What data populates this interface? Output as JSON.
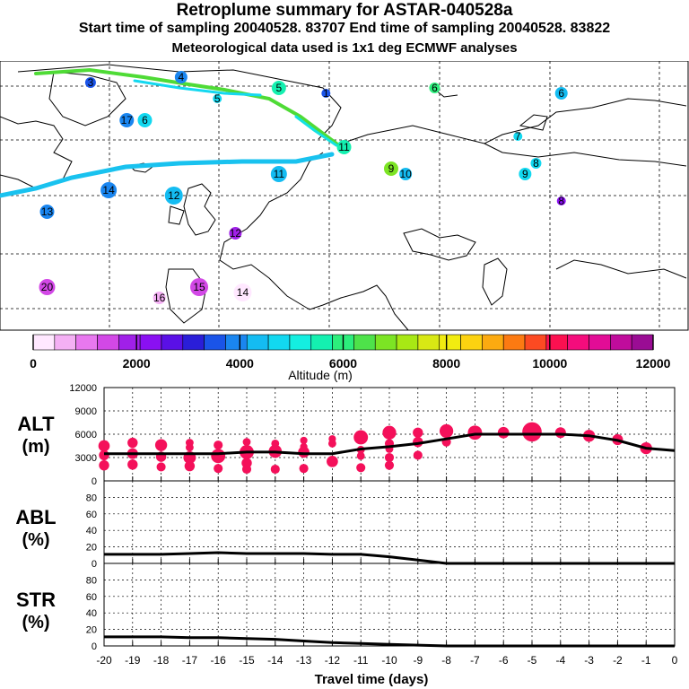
{
  "header": {
    "title": "Retroplume summary for ASTAR-040528a",
    "subtitle_sampling": "Start time of sampling 20040528. 83707     End time of sampling 20040528. 83822",
    "subtitle_met": "Meteorological data used is 1x1 deg ECMWF analyses"
  },
  "map": {
    "kind": "retroplume trajectory map, North Atlantic / Arctic / Europe",
    "trajectory_labels": [
      {
        "label": "1",
        "alt_m": 3500,
        "lon": -5,
        "lat": 76
      },
      {
        "label": "3",
        "alt_m": 3500,
        "lon": -70,
        "lat": 78
      },
      {
        "label": "4",
        "alt_m": 3800,
        "lon": -45,
        "lat": 79
      },
      {
        "label": "5",
        "alt_m": 5600,
        "lon": -18,
        "lat": 77
      },
      {
        "label": "5",
        "alt_m": 4600,
        "lon": -35,
        "lat": 75
      },
      {
        "label": "6",
        "alt_m": 5800,
        "lon": 25,
        "lat": 77
      },
      {
        "label": "6",
        "alt_m": 4200,
        "lon": 60,
        "lat": 76
      },
      {
        "label": "6",
        "alt_m": 4700,
        "lon": -55,
        "lat": 71
      },
      {
        "label": "7",
        "alt_m": 4800,
        "lon": 48,
        "lat": 68
      },
      {
        "label": "8",
        "alt_m": 4900,
        "lon": 53,
        "lat": 63
      },
      {
        "label": "9",
        "alt_m": 4800,
        "lon": 50,
        "lat": 61
      },
      {
        "label": "9",
        "alt_m": 7000,
        "lon": 13,
        "lat": 62
      },
      {
        "label": "10",
        "alt_m": 4400,
        "lon": 17,
        "lat": 61
      },
      {
        "label": "11",
        "alt_m": 5700,
        "lon": 0,
        "lat": 66
      },
      {
        "label": "11",
        "alt_m": 4200,
        "lon": -18,
        "lat": 61
      },
      {
        "label": "12",
        "alt_m": 4200,
        "lon": -47,
        "lat": 57
      },
      {
        "label": "12",
        "alt_m": 1700,
        "lon": -30,
        "lat": 50
      },
      {
        "label": "13",
        "alt_m": 4000,
        "lon": -82,
        "lat": 54
      },
      {
        "label": "14",
        "alt_m": 4100,
        "lon": -65,
        "lat": 58
      },
      {
        "label": "15",
        "alt_m": 1600,
        "lon": -40,
        "lat": 40
      },
      {
        "label": "16",
        "alt_m": 800,
        "lon": -51,
        "lat": 38
      },
      {
        "label": "17",
        "alt_m": 3800,
        "lon": -60,
        "lat": 71
      },
      {
        "label": "20",
        "alt_m": 1500,
        "lon": -82,
        "lat": 40
      },
      {
        "label": "14",
        "alt_m": 400,
        "lon": -28,
        "lat": 39
      },
      {
        "label": "8",
        "alt_m": 2100,
        "lon": 60,
        "lat": 56
      }
    ]
  },
  "colorbar": {
    "labels": [
      "0",
      "2000",
      "4000",
      "6000",
      "8000",
      "10000",
      "12000"
    ],
    "title": "Altitude (m)",
    "colors": [
      "#ffe8ff",
      "#f4b0f4",
      "#e878ef",
      "#d248e6",
      "#a020e8",
      "#8a10f2",
      "#5a10e6",
      "#2a1ed8",
      "#1a54e8",
      "#1a86f0",
      "#14bcf2",
      "#12d8f0",
      "#14eee0",
      "#14f0b0",
      "#2cee7c",
      "#4ee24a",
      "#7ce424",
      "#a8e814",
      "#d8e814",
      "#f2ec10",
      "#fcd210",
      "#fcaa10",
      "#fc7a12",
      "#fc4a22",
      "#fc1050",
      "#f40c7c",
      "#e20c96",
      "#c00c9c",
      "#9a0c94"
    ]
  },
  "chart_data": [
    {
      "type": "line",
      "id": "alt",
      "title": "ALT",
      "unit_label": "(m)",
      "x": [
        -20,
        -19,
        -18,
        -17,
        -16,
        -15,
        -14,
        -13,
        -12,
        -11,
        -10,
        -9,
        -8,
        -7,
        -6,
        -5,
        -4,
        -3,
        -2,
        -1,
        0
      ],
      "xlim": [
        -20,
        0
      ],
      "ylim": [
        0,
        12000
      ],
      "yticks": [
        "12000",
        "9000",
        "6000",
        "3000",
        "0"
      ],
      "series": [
        {
          "name": "median altitude",
          "values": [
            3500,
            3500,
            3500,
            3500,
            3500,
            3700,
            3700,
            3500,
            3500,
            4100,
            4400,
            4800,
            5400,
            6000,
            6000,
            6000,
            6000,
            5800,
            5200,
            4200,
            3900
          ]
        }
      ],
      "scatter_points": [
        {
          "x": -20,
          "y": 4500,
          "s": 1.2
        },
        {
          "x": -20,
          "y": 3300,
          "s": 1.0
        },
        {
          "x": -20,
          "y": 2000,
          "s": 1.0
        },
        {
          "x": -19,
          "y": 4900,
          "s": 1.0
        },
        {
          "x": -19,
          "y": 3500,
          "s": 1.1
        },
        {
          "x": -19,
          "y": 2100,
          "s": 1.0
        },
        {
          "x": -18,
          "y": 4600,
          "s": 1.3
        },
        {
          "x": -18,
          "y": 3100,
          "s": 1.0
        },
        {
          "x": -18,
          "y": 1800,
          "s": 0.8
        },
        {
          "x": -17,
          "y": 4900,
          "s": 0.6
        },
        {
          "x": -17,
          "y": 4300,
          "s": 0.6
        },
        {
          "x": -17,
          "y": 3000,
          "s": 1.4
        },
        {
          "x": -17,
          "y": 1900,
          "s": 1.0
        },
        {
          "x": -16,
          "y": 4600,
          "s": 0.8
        },
        {
          "x": -16,
          "y": 3200,
          "s": 1.7
        },
        {
          "x": -16,
          "y": 1600,
          "s": 0.8
        },
        {
          "x": -15,
          "y": 5000,
          "s": 0.6
        },
        {
          "x": -15,
          "y": 3700,
          "s": 1.7
        },
        {
          "x": -15,
          "y": 2300,
          "s": 1.0
        },
        {
          "x": -15,
          "y": 1500,
          "s": 0.8
        },
        {
          "x": -14,
          "y": 4800,
          "s": 0.6
        },
        {
          "x": -14,
          "y": 3800,
          "s": 1.5
        },
        {
          "x": -14,
          "y": 1500,
          "s": 0.8
        },
        {
          "x": -13,
          "y": 5200,
          "s": 0.5
        },
        {
          "x": -13,
          "y": 4400,
          "s": 0.5
        },
        {
          "x": -13,
          "y": 3700,
          "s": 1.2
        },
        {
          "x": -13,
          "y": 1600,
          "s": 0.8
        },
        {
          "x": -12,
          "y": 5400,
          "s": 0.5
        },
        {
          "x": -12,
          "y": 4800,
          "s": 0.6
        },
        {
          "x": -12,
          "y": 2500,
          "s": 1.2
        },
        {
          "x": -11,
          "y": 5600,
          "s": 1.7
        },
        {
          "x": -11,
          "y": 4000,
          "s": 0.6
        },
        {
          "x": -11,
          "y": 3200,
          "s": 0.6
        },
        {
          "x": -11,
          "y": 1700,
          "s": 0.8
        },
        {
          "x": -10,
          "y": 6200,
          "s": 1.6
        },
        {
          "x": -10,
          "y": 4800,
          "s": 0.8
        },
        {
          "x": -10,
          "y": 4100,
          "s": 0.6
        },
        {
          "x": -10,
          "y": 3000,
          "s": 0.8
        },
        {
          "x": -10,
          "y": 2000,
          "s": 0.8
        },
        {
          "x": -9,
          "y": 6200,
          "s": 1.0
        },
        {
          "x": -9,
          "y": 5000,
          "s": 1.0
        },
        {
          "x": -9,
          "y": 3300,
          "s": 0.8
        },
        {
          "x": -8,
          "y": 6400,
          "s": 1.6
        },
        {
          "x": -8,
          "y": 5000,
          "s": 0.8
        },
        {
          "x": -7,
          "y": 6200,
          "s": 1.7
        },
        {
          "x": -6,
          "y": 6200,
          "s": 1.2
        },
        {
          "x": -5,
          "y": 6300,
          "s": 2.6
        },
        {
          "x": -4,
          "y": 6200,
          "s": 1.1
        },
        {
          "x": -3,
          "y": 5800,
          "s": 1.3
        },
        {
          "x": -2,
          "y": 5300,
          "s": 1.1
        },
        {
          "x": -1,
          "y": 4200,
          "s": 1.3
        }
      ]
    },
    {
      "type": "line",
      "id": "abl",
      "title": "ABL",
      "unit_label": "(%)",
      "x": [
        -20,
        -19,
        -18,
        -17,
        -16,
        -15,
        -14,
        -13,
        -12,
        -11,
        -10,
        -9,
        -8,
        -7,
        -6,
        -5,
        -4,
        -3,
        -2,
        -1,
        0
      ],
      "xlim": [
        -20,
        0
      ],
      "ylim": [
        0,
        100
      ],
      "yticks": [
        "80",
        "60",
        "40",
        "20",
        "0"
      ],
      "series": [
        {
          "name": "fraction in boundary layer",
          "values": [
            11,
            11,
            11,
            12,
            13,
            12,
            12,
            12,
            11,
            11,
            8,
            4,
            0,
            0,
            0,
            0,
            0,
            0,
            0,
            0,
            0
          ]
        }
      ]
    },
    {
      "type": "line",
      "id": "str",
      "title": "STR",
      "unit_label": "(%)",
      "x": [
        -20,
        -19,
        -18,
        -17,
        -16,
        -15,
        -14,
        -13,
        -12,
        -11,
        -10,
        -9,
        -8,
        -7,
        -6,
        -5,
        -4,
        -3,
        -2,
        -1,
        0
      ],
      "xlim": [
        -20,
        0
      ],
      "ylim": [
        0,
        100
      ],
      "yticks": [
        "80",
        "60",
        "40",
        "20",
        "0"
      ],
      "xticks": [
        "-20",
        "-19",
        "-18",
        "-17",
        "-16",
        "-15",
        "-14",
        "-13",
        "-12",
        "-11",
        "-10",
        "-9",
        "-8",
        "-7",
        "-6",
        "-5",
        "-4",
        "-3",
        "-2",
        "-1",
        "0"
      ],
      "xlabel": "Travel time (days)",
      "series": [
        {
          "name": "fraction in stratosphere",
          "values": [
            11,
            11,
            11,
            10,
            10,
            9,
            8,
            6,
            4,
            3,
            2,
            1,
            0,
            0,
            0,
            0,
            0,
            0,
            0,
            0,
            0
          ]
        }
      ]
    }
  ]
}
